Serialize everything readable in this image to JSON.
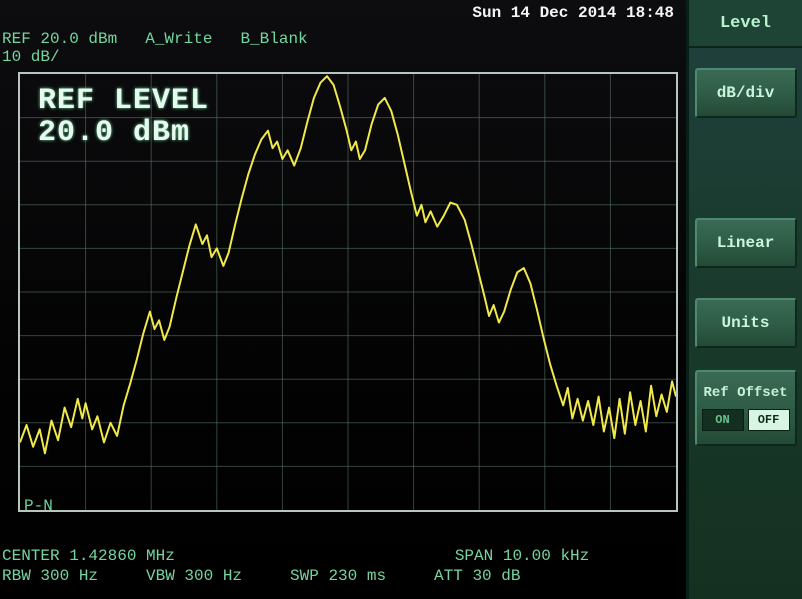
{
  "colors": {
    "text_primary": "#6ed89e",
    "text_bright": "#e8faef",
    "grid": "#5d7b6a",
    "trace": "#f1e94a",
    "panel_bg": "#1a3c2e",
    "btn_face": "#2d5a44",
    "screen_bg": "#050507"
  },
  "header": {
    "datetime": "Sun 14 Dec 2014 18:48",
    "ref": "REF 20.0 dBm",
    "trace_a": "A_Write",
    "trace_b": "B_Blank",
    "db_per_div": "10 dB/"
  },
  "overlay": {
    "line1": "REF LEVEL",
    "line2": "20.0 dBm"
  },
  "pn_label": "P-N",
  "footer": {
    "center": "CENTER 1.42860 MHz",
    "span": "SPAN 10.00 kHz",
    "rbw": "RBW 300 Hz",
    "vbw": "VBW 300 Hz",
    "swp": "SWP 230 ms",
    "att": "ATT 30 dB"
  },
  "sidebar": {
    "title": "Level",
    "btns": {
      "db_div": "dB/div",
      "linear": "Linear",
      "units": "Units",
      "ref_offset": "Ref Offset",
      "on": "ON",
      "off": "OFF",
      "off_active": true
    }
  },
  "chart": {
    "type": "line",
    "grid_divs_x": 10,
    "grid_divs_y": 10,
    "xlim": [
      0,
      10
    ],
    "ylim": [
      0,
      10
    ],
    "grid_color": "#5d7b6a",
    "border_color": "#b7c7bd",
    "trace_color": "#f1e94a",
    "trace_width": 2,
    "background_color": "#030306",
    "points": [
      [
        0.0,
        1.55
      ],
      [
        0.1,
        1.95
      ],
      [
        0.2,
        1.45
      ],
      [
        0.3,
        1.85
      ],
      [
        0.38,
        1.3
      ],
      [
        0.48,
        2.05
      ],
      [
        0.58,
        1.6
      ],
      [
        0.68,
        2.35
      ],
      [
        0.78,
        1.9
      ],
      [
        0.88,
        2.55
      ],
      [
        0.95,
        2.1
      ],
      [
        1.0,
        2.45
      ],
      [
        1.1,
        1.85
      ],
      [
        1.18,
        2.15
      ],
      [
        1.28,
        1.55
      ],
      [
        1.38,
        2.0
      ],
      [
        1.48,
        1.7
      ],
      [
        1.58,
        2.4
      ],
      [
        1.68,
        2.9
      ],
      [
        1.78,
        3.45
      ],
      [
        1.88,
        4.05
      ],
      [
        1.98,
        4.55
      ],
      [
        2.05,
        4.15
      ],
      [
        2.12,
        4.35
      ],
      [
        2.2,
        3.9
      ],
      [
        2.28,
        4.2
      ],
      [
        2.38,
        4.85
      ],
      [
        2.48,
        5.45
      ],
      [
        2.58,
        6.05
      ],
      [
        2.68,
        6.55
      ],
      [
        2.78,
        6.1
      ],
      [
        2.85,
        6.3
      ],
      [
        2.92,
        5.8
      ],
      [
        3.0,
        6.0
      ],
      [
        3.1,
        5.6
      ],
      [
        3.18,
        5.9
      ],
      [
        3.28,
        6.55
      ],
      [
        3.38,
        7.15
      ],
      [
        3.48,
        7.7
      ],
      [
        3.58,
        8.15
      ],
      [
        3.68,
        8.5
      ],
      [
        3.78,
        8.7
      ],
      [
        3.85,
        8.3
      ],
      [
        3.92,
        8.45
      ],
      [
        4.0,
        8.05
      ],
      [
        4.08,
        8.25
      ],
      [
        4.18,
        7.9
      ],
      [
        4.28,
        8.3
      ],
      [
        4.38,
        8.9
      ],
      [
        4.48,
        9.45
      ],
      [
        4.58,
        9.8
      ],
      [
        4.68,
        9.95
      ],
      [
        4.78,
        9.75
      ],
      [
        4.88,
        9.25
      ],
      [
        4.98,
        8.7
      ],
      [
        5.05,
        8.25
      ],
      [
        5.12,
        8.45
      ],
      [
        5.18,
        8.05
      ],
      [
        5.26,
        8.25
      ],
      [
        5.36,
        8.85
      ],
      [
        5.46,
        9.3
      ],
      [
        5.56,
        9.45
      ],
      [
        5.66,
        9.15
      ],
      [
        5.76,
        8.6
      ],
      [
        5.86,
        7.95
      ],
      [
        5.96,
        7.3
      ],
      [
        6.05,
        6.75
      ],
      [
        6.12,
        7.0
      ],
      [
        6.18,
        6.6
      ],
      [
        6.26,
        6.85
      ],
      [
        6.36,
        6.5
      ],
      [
        6.46,
        6.75
      ],
      [
        6.56,
        7.05
      ],
      [
        6.66,
        7.0
      ],
      [
        6.78,
        6.65
      ],
      [
        6.88,
        6.1
      ],
      [
        6.98,
        5.5
      ],
      [
        7.08,
        4.9
      ],
      [
        7.15,
        4.45
      ],
      [
        7.22,
        4.7
      ],
      [
        7.3,
        4.3
      ],
      [
        7.38,
        4.55
      ],
      [
        7.48,
        5.05
      ],
      [
        7.58,
        5.45
      ],
      [
        7.68,
        5.55
      ],
      [
        7.78,
        5.2
      ],
      [
        7.88,
        4.6
      ],
      [
        7.98,
        3.95
      ],
      [
        8.08,
        3.35
      ],
      [
        8.18,
        2.85
      ],
      [
        8.28,
        2.4
      ],
      [
        8.35,
        2.8
      ],
      [
        8.42,
        2.1
      ],
      [
        8.5,
        2.55
      ],
      [
        8.58,
        2.05
      ],
      [
        8.66,
        2.5
      ],
      [
        8.74,
        1.95
      ],
      [
        8.82,
        2.6
      ],
      [
        8.9,
        1.8
      ],
      [
        8.98,
        2.35
      ],
      [
        9.06,
        1.65
      ],
      [
        9.14,
        2.55
      ],
      [
        9.22,
        1.75
      ],
      [
        9.3,
        2.7
      ],
      [
        9.38,
        1.95
      ],
      [
        9.46,
        2.5
      ],
      [
        9.54,
        1.8
      ],
      [
        9.62,
        2.85
      ],
      [
        9.7,
        2.15
      ],
      [
        9.78,
        2.65
      ],
      [
        9.86,
        2.25
      ],
      [
        9.94,
        2.95
      ],
      [
        10.0,
        2.6
      ]
    ]
  }
}
